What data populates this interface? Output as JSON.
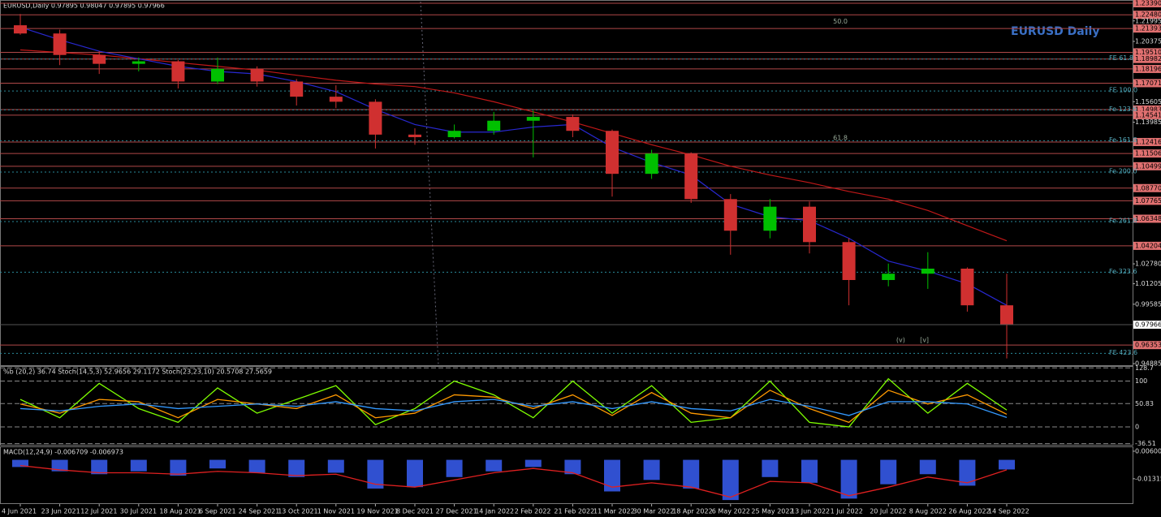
{
  "chart_data": [
    {
      "type": "candlestick",
      "title": "EURUSD,Daily  0.97895 0.98047 0.97895 0.97966",
      "watermark": "EURUSD Daily",
      "categories": [
        "4 Jun 2021",
        "23 Jun 2021",
        "12 Jul 2021",
        "30 Jul 2021",
        "18 Aug 2021",
        "6 Sep 2021",
        "24 Sep 2021",
        "13 Oct 2021",
        "1 Nov 2021",
        "19 Nov 2021",
        "8 Dec 2021",
        "27 Dec 2021",
        "14 Jan 2022",
        "2 Feb 2022",
        "21 Feb 2022",
        "11 Mar 2022",
        "30 Mar 2022",
        "18 Apr 2022",
        "6 May 2022",
        "25 May 2022",
        "13 Jun 2022",
        "1 Jul 2022",
        "20 Jul 2022",
        "8 Aug 2022",
        "26 Aug 2022",
        "14 Sep 2022"
      ],
      "open": [
        1.2165,
        1.21,
        1.193,
        1.186,
        1.188,
        1.172,
        1.182,
        1.172,
        1.16,
        1.156,
        1.13,
        1.128,
        1.133,
        1.141,
        1.144,
        1.133,
        1.099,
        1.115,
        1.079,
        1.054,
        1.073,
        1.045,
        1.015,
        1.02,
        1.024,
        0.995
      ],
      "high": [
        1.2254,
        1.213,
        1.196,
        1.191,
        1.189,
        1.191,
        1.184,
        1.174,
        1.169,
        1.158,
        1.135,
        1.138,
        1.148,
        1.149,
        1.146,
        1.134,
        1.118,
        1.116,
        1.083,
        1.079,
        1.077,
        1.048,
        1.028,
        1.037,
        1.025,
        1.02
      ],
      "low": [
        1.209,
        1.185,
        1.178,
        1.18,
        1.1665,
        1.17,
        1.168,
        1.153,
        1.151,
        1.119,
        1.122,
        1.127,
        1.13,
        1.112,
        1.128,
        1.081,
        1.095,
        1.076,
        1.035,
        1.048,
        1.036,
        0.995,
        1.01,
        1.008,
        0.99,
        0.953
      ],
      "close": [
        1.21,
        1.193,
        1.186,
        1.188,
        1.172,
        1.182,
        1.172,
        1.16,
        1.156,
        1.13,
        1.128,
        1.133,
        1.141,
        1.144,
        1.133,
        1.099,
        1.115,
        1.079,
        1.054,
        1.073,
        1.045,
        1.015,
        1.02,
        1.024,
        0.995,
        0.97966
      ],
      "bull_color": "#00c000",
      "bear_color": "#d03030",
      "overlays": [
        {
          "color": "#c01818",
          "values": [
            1.197,
            1.195,
            1.193,
            1.19,
            1.187,
            1.184,
            1.181,
            1.177,
            1.173,
            1.17,
            1.168,
            1.163,
            1.156,
            1.148,
            1.14,
            1.131,
            1.122,
            1.114,
            1.105,
            1.098,
            1.092,
            1.085,
            1.079,
            1.07,
            1.058,
            1.046
          ]
        },
        {
          "color": "#2828d0",
          "values": [
            1.215,
            1.205,
            1.196,
            1.19,
            1.184,
            1.18,
            1.178,
            1.172,
            1.164,
            1.15,
            1.138,
            1.132,
            1.132,
            1.136,
            1.138,
            1.12,
            1.108,
            1.098,
            1.075,
            1.065,
            1.062,
            1.048,
            1.03,
            1.022,
            1.012,
            0.995
          ]
        }
      ],
      "ylim": [
        0.9476,
        1.2352
      ],
      "yticks": [
        1.21995,
        1.20375,
        1.15605,
        1.13985,
        {
          "value": 1.0278,
          "label": "1.02780"
        },
        1.01205,
        0.99585,
        0.94885
      ],
      "levels": [
        {
          "value": 1.2339,
          "label": "1.23390"
        },
        {
          "value": 1.2248,
          "label": "1.22480"
        },
        1.21393,
        {
          "value": 1.1951,
          "label": "1.19510"
        },
        1.18982,
        1.18196,
        1.17071,
        1.14983,
        1.14541,
        1.12416,
        1.11506,
        1.10499,
        {
          "value": 1.0877,
          "label": "1.08770"
        },
        1.07765,
        1.06348,
        1.04204,
        0.96353
      ],
      "current": 0.97966,
      "fib": [
        {
          "value": 1.1898,
          "label": "FE 61.8"
        },
        {
          "value": 1.1645,
          "label": "FE 100.0"
        },
        {
          "value": 1.1496,
          "label": "Fe 123.6"
        },
        {
          "value": 1.1252,
          "label": "Fe 161.8"
        },
        {
          "value": 1.1004,
          "label": "Fe 200.0"
        },
        {
          "value": 1.0612,
          "label": "Fe 261.8"
        },
        {
          "value": 1.0212,
          "label": "Fe 323.6"
        },
        {
          "value": 0.957,
          "label": "FE 423.6"
        }
      ],
      "annotations": [
        {
          "text": "50.0",
          "x": 20.6,
          "y": 1.2196
        },
        {
          "text": "61.8",
          "x": 20.6,
          "y": 1.1274
        },
        {
          "text": "(v)",
          "x": 22.2,
          "y": 0.9675
        },
        {
          "text": "[v]",
          "x": 22.8,
          "y": 0.9675
        }
      ]
    },
    {
      "type": "oscillator",
      "title": "%b (20,2) 36.74  Stoch(14,5,3) 52.9656 29.1172  Stoch(23,23,10) 20.5708 27.5659",
      "ylim": [
        -38.9,
        131
      ],
      "yticks": [
        128.7,
        100,
        50.83,
        0,
        -36.51
      ],
      "series": [
        {
          "color": "#7fff00",
          "values": [
            60,
            20,
            95,
            40,
            10,
            85,
            30,
            60,
            90,
            5,
            40,
            100,
            70,
            20,
            100,
            30,
            90,
            10,
            20,
            100,
            10,
            0,
            105,
            30,
            95,
            36.74
          ]
        },
        {
          "color": "#ff9900",
          "values": [
            50,
            30,
            60,
            55,
            20,
            60,
            50,
            40,
            70,
            20,
            30,
            70,
            65,
            40,
            70,
            25,
            75,
            30,
            20,
            80,
            40,
            10,
            80,
            50,
            70,
            27.57
          ]
        },
        {
          "color": "#3399ff",
          "values": [
            40,
            35,
            45,
            50,
            40,
            45,
            50,
            45,
            55,
            40,
            35,
            55,
            60,
            45,
            55,
            40,
            55,
            40,
            35,
            60,
            45,
            25,
            55,
            55,
            50,
            20.57
          ]
        }
      ]
    },
    {
      "type": "macd",
      "title": "MACD(12,24,9) -0.006709 -0.006973",
      "ylim": [
        -0.0302,
        0.0088
      ],
      "yticks": [
        0.006006,
        -0.013154
      ],
      "histogram": {
        "color": "#3050d0",
        "values": [
          -0.005,
          -0.008,
          -0.01,
          -0.008,
          -0.011,
          -0.006,
          -0.009,
          -0.012,
          -0.009,
          -0.02,
          -0.019,
          -0.012,
          -0.008,
          -0.005,
          -0.01,
          -0.022,
          -0.014,
          -0.02,
          -0.028,
          -0.012,
          -0.016,
          -0.027,
          -0.017,
          -0.01,
          -0.018,
          -0.006709
        ]
      },
      "signal": {
        "color": "#e02020",
        "values": [
          -0.004,
          -0.007,
          -0.009,
          -0.009,
          -0.01,
          -0.008,
          -0.009,
          -0.011,
          -0.01,
          -0.017,
          -0.019,
          -0.014,
          -0.009,
          -0.006,
          -0.009,
          -0.019,
          -0.016,
          -0.019,
          -0.026,
          -0.015,
          -0.016,
          -0.025,
          -0.019,
          -0.012,
          -0.016,
          -0.006973
        ]
      }
    }
  ]
}
